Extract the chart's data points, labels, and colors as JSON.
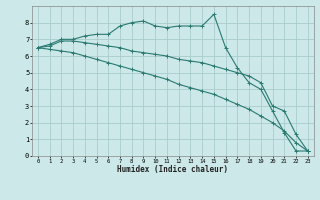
{
  "xlabel": "Humidex (Indice chaleur)",
  "ylabel": "",
  "background_color": "#cce8e8",
  "grid_color": "#aacccc",
  "line_color": "#2a7a72",
  "xlim": [
    -0.5,
    23.5
  ],
  "ylim": [
    0,
    9
  ],
  "xticks": [
    0,
    1,
    2,
    3,
    4,
    5,
    6,
    7,
    8,
    9,
    10,
    11,
    12,
    13,
    14,
    15,
    16,
    17,
    18,
    19,
    20,
    21,
    22,
    23
  ],
  "yticks": [
    0,
    1,
    2,
    3,
    4,
    5,
    6,
    7,
    8
  ],
  "line1_x": [
    0,
    1,
    2,
    3,
    4,
    5,
    6,
    7,
    8,
    9,
    10,
    11,
    12,
    13,
    14,
    15,
    16,
    17,
    18,
    19,
    20,
    21,
    22,
    23
  ],
  "line1_y": [
    6.5,
    6.7,
    7.0,
    7.0,
    7.2,
    7.3,
    7.3,
    7.8,
    8.0,
    8.1,
    7.8,
    7.7,
    7.8,
    7.8,
    7.8,
    8.5,
    6.5,
    5.3,
    4.4,
    4.0,
    2.7,
    1.4,
    0.3,
    0.3
  ],
  "line2_x": [
    0,
    1,
    2,
    3,
    4,
    5,
    6,
    7,
    8,
    9,
    10,
    11,
    12,
    13,
    14,
    15,
    16,
    17,
    18,
    19,
    20,
    21,
    22,
    23
  ],
  "line2_y": [
    6.5,
    6.6,
    6.9,
    6.9,
    6.8,
    6.7,
    6.6,
    6.5,
    6.3,
    6.2,
    6.1,
    6.0,
    5.8,
    5.7,
    5.6,
    5.4,
    5.2,
    5.0,
    4.8,
    4.4,
    3.0,
    2.7,
    1.3,
    0.3
  ],
  "line3_x": [
    0,
    1,
    2,
    3,
    4,
    5,
    6,
    7,
    8,
    9,
    10,
    11,
    12,
    13,
    14,
    15,
    16,
    17,
    18,
    19,
    20,
    21,
    22,
    23
  ],
  "line3_y": [
    6.5,
    6.4,
    6.3,
    6.2,
    6.0,
    5.8,
    5.6,
    5.4,
    5.2,
    5.0,
    4.8,
    4.6,
    4.3,
    4.1,
    3.9,
    3.7,
    3.4,
    3.1,
    2.8,
    2.4,
    2.0,
    1.5,
    0.8,
    0.3
  ]
}
